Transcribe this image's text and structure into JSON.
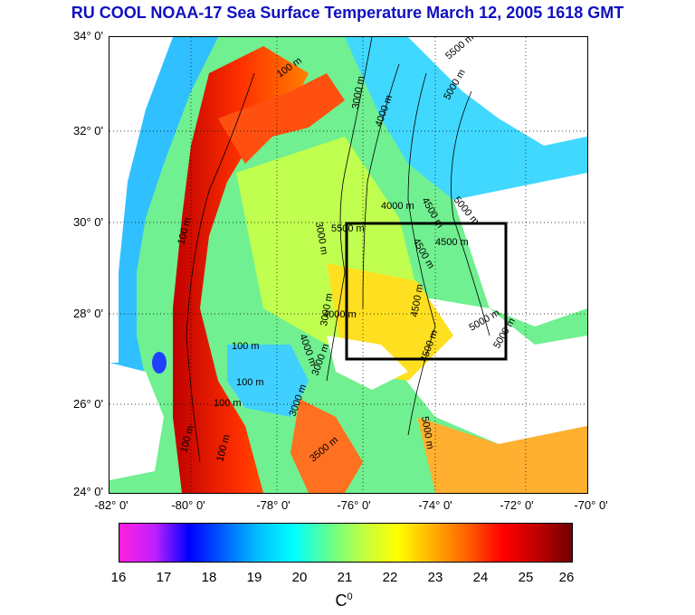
{
  "title": "RU COOL  NOAA-17 Sea Surface Temperature March 12, 2005 1618 GMT",
  "colors": {
    "title": "#1010c0",
    "box": "#000000",
    "land": "#ffffff"
  },
  "axes": {
    "latitude_labels": [
      "34° 0'",
      "32° 0'",
      "30° 0'",
      "28° 0'",
      "26° 0'",
      "24° 0'"
    ],
    "longitude_labels": [
      "-82° 0'",
      "-80° 0'",
      "-78° 0'",
      "-76° 0'",
      "-74° 0'",
      "-72° 0'",
      "-70° 0'"
    ]
  },
  "colorbar": {
    "ticks": [
      "16",
      "17",
      "18",
      "19",
      "20",
      "21",
      "22",
      "23",
      "24",
      "25",
      "26"
    ],
    "unit_main": "C",
    "unit_sup": "0",
    "stops": [
      "#ff20e0",
      "#c020ff",
      "#0000ff",
      "#0060ff",
      "#00c0ff",
      "#00ffff",
      "#60ff90",
      "#c0ff40",
      "#ffff00",
      "#ffb000",
      "#ff6000",
      "#ff0000",
      "#c00000",
      "#700000"
    ]
  },
  "contours": [
    "100 m",
    "100 m",
    "100 m",
    "100 m",
    "100 m",
    "100 m",
    "100 m",
    "3000 m",
    "3000 m",
    "3000 m",
    "3000 m",
    "3000 m",
    "4000 m",
    "4000 m",
    "4000 m",
    "4500 m",
    "4500 m",
    "4500 m",
    "4500 m",
    "5000 m",
    "5000 m",
    "5000 m",
    "5000 m",
    "5500 m",
    "5500 m",
    "4500 m",
    "5000 m",
    "4000 m",
    "3500 m"
  ]
}
